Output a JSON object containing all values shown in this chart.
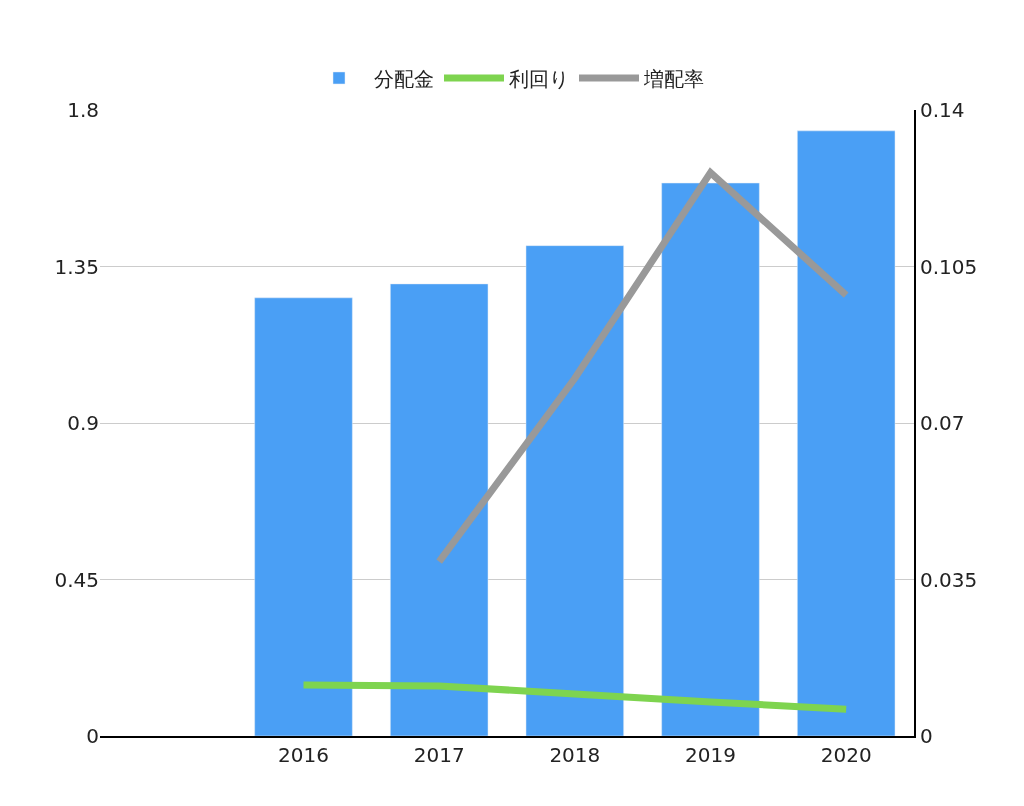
{
  "chart_data": {
    "type": "bar",
    "categories": [
      null,
      "2016",
      "2017",
      "2018",
      "2019",
      "2020"
    ],
    "series": [
      {
        "name": "分配金",
        "color": "#4a9ff5",
        "values": [
          null,
          1.26,
          1.3,
          1.41,
          1.59,
          1.74
        ]
      },
      {
        "name": "利回り",
        "color": "#7ed44f",
        "type": "line",
        "axis": "y2",
        "values": [
          null,
          0.0114,
          0.0112,
          0.0094,
          0.0076,
          0.006
        ]
      },
      {
        "name": "増配率",
        "color": "#999999",
        "type": "line",
        "axis": "y2",
        "values": [
          null,
          null,
          0.039,
          0.08,
          0.126,
          0.0986
        ]
      }
    ],
    "ylim": [
      0,
      1.8
    ],
    "yticks": [
      0,
      0.45,
      0.9,
      1.35,
      1.8
    ],
    "y2lim": [
      0,
      0.14
    ],
    "y2ticks": [
      0,
      0.035,
      0.07,
      0.105,
      0.14
    ],
    "grid": "y",
    "legend": "top",
    "marker": "none",
    "line_style": "solid"
  }
}
